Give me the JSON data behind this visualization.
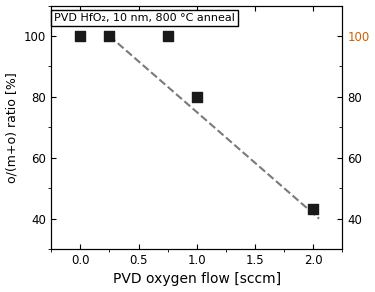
{
  "x_data": [
    0.0,
    0.25,
    0.75,
    1.0,
    2.0
  ],
  "y_data": [
    100,
    100,
    100,
    80,
    43
  ],
  "trendline_x": [
    0.25,
    2.05
  ],
  "trendline_y": [
    100,
    40
  ],
  "xlabel": "PVD oxygen flow [sccm]",
  "ylabel_left": "o/(m+o) ratio [%]",
  "annotation": "PVD HfO₂, 10 nm, 800 °C anneal",
  "xlim": [
    -0.25,
    2.25
  ],
  "ylim": [
    30,
    110
  ],
  "yticks": [
    40,
    60,
    80,
    100
  ],
  "xticks": [
    0.0,
    0.5,
    1.0,
    1.5,
    2.0
  ],
  "marker_color": "#1a1a1a",
  "trendline_color": "#7a7a7a",
  "right_tick_colors": [
    "black",
    "black",
    "black",
    "#e07000"
  ],
  "marker_size": 7,
  "xlabel_fontsize": 10,
  "ylabel_fontsize": 9,
  "tick_fontsize": 8.5,
  "annot_fontsize": 8
}
